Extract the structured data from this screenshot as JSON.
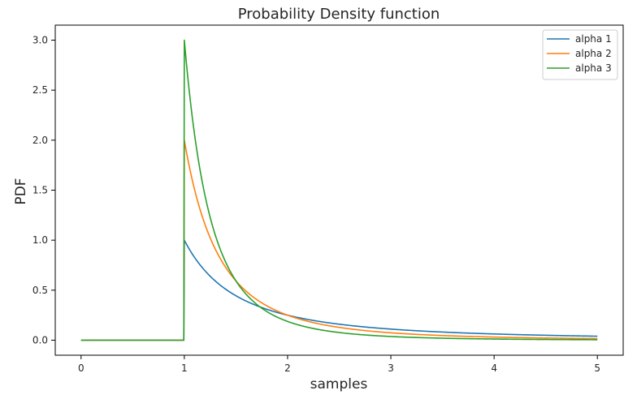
{
  "chart_data": {
    "type": "line",
    "title": "Probability Density function",
    "xlabel": "samples",
    "ylabel": "PDF",
    "xlim": [
      -0.25,
      5.25
    ],
    "ylim": [
      -0.15,
      3.15
    ],
    "xticks": [
      "0",
      "1",
      "2",
      "3",
      "4",
      "5"
    ],
    "yticks": [
      "0.0",
      "0.5",
      "1.0",
      "1.5",
      "2.0",
      "2.5",
      "3.0"
    ],
    "grid": false,
    "legend_position": "top-right",
    "distribution": "pareto",
    "x_min": 1,
    "sample_range": [
      0,
      5
    ],
    "series": [
      {
        "name": "alpha 1",
        "alpha": 1,
        "color": "#1f77b4",
        "x": [
          0,
          0.99,
          1,
          1.1,
          1.2,
          1.3,
          1.4,
          1.5,
          1.75,
          2,
          2.5,
          3,
          3.5,
          4,
          4.5,
          5
        ],
        "y": [
          0,
          0,
          1.0,
          0.826,
          0.694,
          0.592,
          0.51,
          0.444,
          0.327,
          0.25,
          0.16,
          0.111,
          0.082,
          0.0625,
          0.049,
          0.04
        ]
      },
      {
        "name": "alpha 2",
        "alpha": 2,
        "color": "#ff7f0e",
        "x": [
          0,
          0.99,
          1,
          1.1,
          1.2,
          1.3,
          1.4,
          1.5,
          1.75,
          2,
          2.5,
          3,
          3.5,
          4,
          4.5,
          5
        ],
        "y": [
          0,
          0,
          2.0,
          1.503,
          1.157,
          0.91,
          0.729,
          0.593,
          0.373,
          0.25,
          0.128,
          0.074,
          0.047,
          0.031,
          0.022,
          0.016
        ]
      },
      {
        "name": "alpha 3",
        "alpha": 3,
        "color": "#2ca02c",
        "x": [
          0,
          0.99,
          1,
          1.1,
          1.2,
          1.3,
          1.4,
          1.5,
          1.75,
          2,
          2.5,
          3,
          3.5,
          4,
          4.5,
          5
        ],
        "y": [
          0,
          0,
          3.0,
          2.049,
          1.447,
          1.05,
          0.781,
          0.593,
          0.32,
          0.188,
          0.077,
          0.037,
          0.02,
          0.012,
          0.007,
          0.005
        ]
      }
    ]
  }
}
